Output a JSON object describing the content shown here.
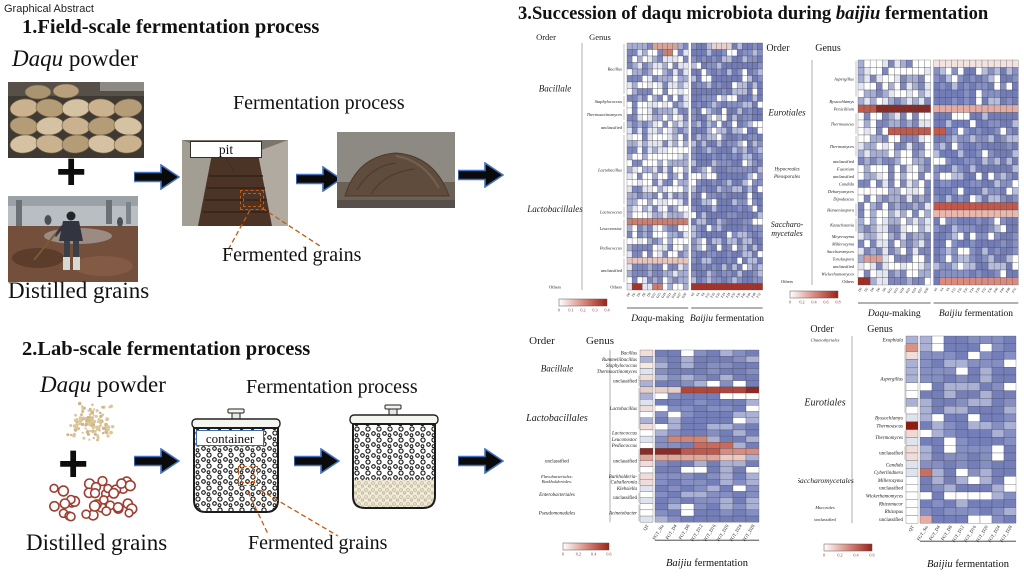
{
  "page": {
    "label": "Graphical Abstract"
  },
  "field": {
    "title": "1.Field-scale fermentation process",
    "daqu_it": "Daqu",
    "daqu_rest": " powder",
    "plus": "+",
    "distilled": "Distilled grains",
    "fermentation": "Fermentation process",
    "pit": "pit",
    "fermented": "Fermented grains"
  },
  "lab": {
    "title": "2.Lab-scale fermentation process",
    "daqu_it": "Daqu",
    "daqu_rest": " powder",
    "plus": "+",
    "distilled": "Distilled grains",
    "fermentation": "Fermentation process",
    "container": "container",
    "fermented": "Fermented grains"
  },
  "succession": {
    "prefix": "3.Succession of daqu microbiota during ",
    "it": "baijiu",
    "suffix": " fermentation"
  },
  "colors": {
    "accent_arrow_outline": "#4472c4",
    "dashed_orange": "#c55a11",
    "heat_low": "#ffffff",
    "heat_mid": "#d98b80",
    "heat_high": "#9e2218",
    "cell_blue": "#7e87bd"
  },
  "heatmaps": [
    {
      "name": "field-scale-bacteria",
      "headers": {
        "order": "Order",
        "genus": "Genus"
      },
      "cols": 26,
      "palette": "field",
      "groups": [
        {
          "cols": 12,
          "label": {
            "it": "Daqu",
            "rest": "-making"
          }
        },
        {
          "cols": 14,
          "label": {
            "it": "Baijiu",
            "rest": " fermentation"
          }
        }
      ],
      "orders": [
        {
          "label": "Bacillale",
          "span": 14,
          "fs": 9
        },
        {
          "label": "Lactobacillales",
          "span": 23,
          "fs": 9
        },
        {
          "label": "Others",
          "span": 1,
          "fs": 4.5,
          "it": false
        }
      ],
      "genera": [
        {
          "label": "Bacillus",
          "span": 8
        },
        {
          "label": "Staphylococcus",
          "span": 2
        },
        {
          "label": "Thermoactinomyces",
          "span": 2
        },
        {
          "label": "unclassified",
          "span": 2,
          "it": false
        },
        {
          "label": "Lactobacillus",
          "span": 11
        },
        {
          "label": "Lactococcus",
          "span": 2
        },
        {
          "label": "Leuconostoc",
          "span": 3
        },
        {
          "label": "Pediococcus",
          "span": 3
        },
        {
          "label": "unclassified",
          "span": 4,
          "it": false
        },
        {
          "label": "Others",
          "span": 1,
          "it": false
        }
      ],
      "xticks": [
        "D0",
        "D2",
        "D4",
        "D6",
        "D9",
        "D12",
        "D15",
        "D18",
        "D21",
        "D24",
        "D27",
        "D30",
        "F0",
        "F4",
        "F8",
        "F12",
        "F16",
        "F20",
        "F24",
        "F28",
        "F32",
        "F36",
        "F40",
        "F44",
        "F48",
        "F52"
      ],
      "colorbar": [
        "0",
        "0.1",
        "0.2",
        "0.3",
        "0.4"
      ],
      "red": [
        [
          0,
          5,
          9,
          "#d9a39a"
        ],
        [
          0,
          16,
          19,
          "#ead0cb"
        ],
        [
          1,
          7,
          8,
          "#c97f72"
        ],
        [
          27,
          0,
          11,
          "#c97f72"
        ],
        [
          33,
          0,
          11,
          "#e8c4bd"
        ],
        [
          37,
          1,
          2,
          "#a93226"
        ],
        [
          37,
          5,
          6,
          "#cc7b6f"
        ],
        [
          37,
          12,
          25,
          "#a93226"
        ]
      ]
    },
    {
      "name": "field-scale-fungi",
      "headers": {
        "order": "Order",
        "genus": "Genus"
      },
      "cols": 26,
      "palette": "field",
      "groups": [
        {
          "cols": 12,
          "label": {
            "it": "Daqu",
            "rest": "-making"
          }
        },
        {
          "cols": 14,
          "label": {
            "it": "Baijiu",
            "rest": " fermentation"
          }
        }
      ],
      "orders": [
        {
          "label": "Eurotiales",
          "span": 14,
          "fs": 9
        },
        {
          "label": "Hypocreales",
          "span": 1,
          "fs": 5
        },
        {
          "label": "Pleosporales",
          "span": 1,
          "fs": 5
        },
        {
          "lines": [
            "Saccharo-",
            "mycetales"
          ],
          "span": 13,
          "fs": 8
        },
        {
          "label": "Others",
          "span": 1,
          "fs": 4.5,
          "it": false
        }
      ],
      "genera": [
        {
          "label": "Aspergillus",
          "span": 5
        },
        {
          "label": "Byssochlamys",
          "span": 1
        },
        {
          "label": "Penicillium",
          "span": 1
        },
        {
          "label": "Thermoascus",
          "span": 3
        },
        {
          "label": "Thermomyces",
          "span": 3
        },
        {
          "label": "unclassified",
          "span": 1,
          "it": false
        },
        {
          "label": "Fusarium",
          "span": 1
        },
        {
          "label": "unclassified",
          "span": 1,
          "it": false
        },
        {
          "label": "Candida",
          "span": 1
        },
        {
          "label": "Debaryomyces",
          "span": 1
        },
        {
          "label": "Dipodascus",
          "span": 1
        },
        {
          "label": "Hanseniaspora",
          "span": 2
        },
        {
          "label": "Kazachstania",
          "span": 2
        },
        {
          "label": "Meyerozyma",
          "span": 1
        },
        {
          "label": "Millerozyma",
          "span": 1
        },
        {
          "label": "Saccharomyces",
          "span": 1
        },
        {
          "label": "Torulaspora",
          "span": 1
        },
        {
          "label": "unclassified",
          "span": 1,
          "it": false
        },
        {
          "label": "Wickerhamomyces",
          "span": 1
        },
        {
          "label": "Others",
          "span": 1,
          "it": false
        }
      ],
      "xticks": [
        "D0",
        "D2",
        "D4",
        "D6",
        "D9",
        "D12",
        "D15",
        "D18",
        "D21",
        "D24",
        "D27",
        "D30",
        "F0",
        "F4",
        "F8",
        "F12",
        "F16",
        "F20",
        "F24",
        "F28",
        "F32",
        "F36",
        "F40",
        "F44",
        "F48",
        "F52"
      ],
      "colorbar": [
        "0",
        "0.2",
        "0.4",
        "0.6",
        "0.8"
      ],
      "red": [
        [
          0,
          12,
          25,
          "#f3e3e0"
        ],
        [
          6,
          0,
          2,
          "#c05a4b"
        ],
        [
          6,
          3,
          11,
          "#8e2a21"
        ],
        [
          6,
          12,
          25,
          "#e3aba2"
        ],
        [
          9,
          5,
          13,
          "#c05a4b"
        ],
        [
          19,
          12,
          25,
          "#c3584a"
        ],
        [
          20,
          12,
          25,
          "#e8b7ae"
        ],
        [
          26,
          1,
          3,
          "#d99d94"
        ],
        [
          29,
          0,
          1,
          "#9e2f24"
        ],
        [
          29,
          13,
          25,
          "#d98b80"
        ]
      ]
    },
    {
      "name": "lab-scale-bacteria",
      "headers": {
        "order": "Order",
        "genus": "Genus"
      },
      "cols": 9,
      "palette": "lab",
      "groups": [
        {
          "cols": 1,
          "label": null
        },
        {
          "cols": 8,
          "label": {
            "it": "Baijiu",
            "rest": " fermentation"
          }
        }
      ],
      "orders": [
        {
          "label": "Bacillale",
          "span": 6,
          "fs": 9
        },
        {
          "label": "Lactobacillales",
          "span": 10,
          "fs": 10
        },
        {
          "label": "unclassified",
          "span": 4,
          "fs": 5,
          "it": false
        },
        {
          "lines": [
            "Flavobacteriales:",
            "Burkholderiales:"
          ],
          "span": 2,
          "fs": 4.5
        },
        {
          "label": "Enterobacteriales",
          "span": 3,
          "fs": 5
        },
        {
          "label": "Pseudomonadales",
          "span": 3,
          "fs": 5
        }
      ],
      "genera": [
        {
          "label": "Bacillus",
          "span": 1
        },
        {
          "label": "Rummeliibacillus",
          "span": 1
        },
        {
          "label": "Staphylococcus",
          "span": 1
        },
        {
          "label": "Thermoactinomyces",
          "span": 1
        },
        {
          "label": "unclassified",
          "span": 2,
          "it": false
        },
        {
          "label": "Lactobacillus",
          "span": 7
        },
        {
          "label": "Lactococcus",
          "span": 1
        },
        {
          "label": "Leuconostoc",
          "span": 1
        },
        {
          "label": "Pediococcus",
          "span": 1
        },
        {
          "label": "unclassified",
          "span": 4,
          "it": false
        },
        {
          "lines": [
            "Burkholderia-",
            "Caballeronia"
          ],
          "span": 2
        },
        {
          "label": "Klebsiella",
          "span": 1
        },
        {
          "label": "unclassified",
          "span": 2,
          "it": false
        },
        {
          "label": "Acinetobacter",
          "span": 3
        }
      ],
      "xticks": [
        "QT",
        "FGT_Sta",
        "FGT_D4",
        "FGT_D8",
        "FGT_D12",
        "FGT_D16",
        "FGT_D20",
        "FGT_D24",
        "FGT_D28"
      ],
      "colorbar": [
        "0",
        "0.2",
        "0.4",
        "0.6"
      ],
      "red": [
        [
          0,
          0,
          0,
          "#f2ddd9"
        ],
        [
          2,
          0,
          0,
          "#f6e8e5"
        ],
        [
          6,
          0,
          2,
          "#e7cfc9"
        ],
        [
          6,
          3,
          7,
          "#b4453a"
        ],
        [
          6,
          8,
          8,
          "#8e2a21"
        ],
        [
          14,
          2,
          4,
          "#d08578"
        ],
        [
          15,
          4,
          6,
          "#c96b5c"
        ],
        [
          16,
          0,
          2,
          "#8e2a21"
        ],
        [
          16,
          3,
          5,
          "#c0584b"
        ],
        [
          16,
          6,
          8,
          "#d58d81"
        ],
        [
          17,
          0,
          5,
          "#e0a79d"
        ],
        [
          17,
          6,
          7,
          "#eccac3"
        ]
      ]
    },
    {
      "name": "lab-scale-fungi",
      "headers": {
        "order": "Order",
        "genus": "Genus"
      },
      "cols": 9,
      "palette": "lab",
      "groups": [
        {
          "cols": 1,
          "label": null
        },
        {
          "cols": 8,
          "label": {
            "it": "Baijiu",
            "rest": " fermentation"
          }
        }
      ],
      "orders": [
        {
          "label": "Chaetothyriales",
          "span": 1,
          "fs": 4.5
        },
        {
          "label": "Eurotiales",
          "span": 15,
          "fs": 10
        },
        {
          "label": "Saccharomycetales",
          "span": 5,
          "fs": 7.5
        },
        {
          "label": "Mucorales",
          "span": 2,
          "fs": 4.5
        },
        {
          "label": "unclassified",
          "span": 1,
          "fs": 4.5,
          "it": false
        }
      ],
      "genera": [
        {
          "label": "Exophiala",
          "span": 1
        },
        {
          "label": "Aspergillus",
          "span": 9
        },
        {
          "label": "Byssochlamys",
          "span": 1
        },
        {
          "label": "Thermoascus",
          "span": 1
        },
        {
          "label": "Thermomyces",
          "span": 2
        },
        {
          "label": "unclassified",
          "span": 2,
          "it": false
        },
        {
          "label": "Candida",
          "span": 1
        },
        {
          "label": "Cyberlindnera",
          "span": 1
        },
        {
          "label": "Millerozyma",
          "span": 1
        },
        {
          "label": "unclassified",
          "span": 1,
          "it": false
        },
        {
          "label": "Wickerhamomyces",
          "span": 1
        },
        {
          "label": "Rhizomucor",
          "span": 1
        },
        {
          "label": "Rhizopus",
          "span": 1
        },
        {
          "label": "unclassified",
          "span": 1,
          "it": false
        }
      ],
      "xticks": [
        "QT",
        "FGT_Sta",
        "FGT_D4",
        "FGT_D8",
        "FGT_D12",
        "FGT_D16",
        "FGT_D20",
        "FGT_D24",
        "FGT_D28"
      ],
      "colorbar": [
        "0",
        "0.2",
        "0.4",
        "0.6"
      ],
      "red": [
        [
          1,
          0,
          0,
          "#d99286"
        ],
        [
          11,
          0,
          0,
          "#8e1d12"
        ],
        [
          12,
          0,
          0,
          "#f0d8d3"
        ],
        [
          17,
          1,
          1,
          "#cc6e5f"
        ],
        [
          20,
          3,
          6,
          "#ffffff"
        ],
        [
          23,
          1,
          1,
          "#e4aca3"
        ]
      ]
    }
  ]
}
